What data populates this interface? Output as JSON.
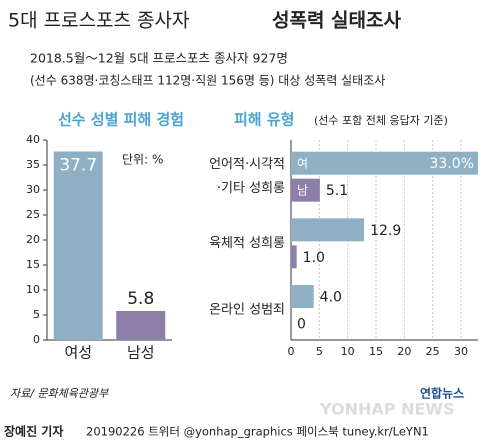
{
  "title": "5대 프로스포츠 종사자",
  "title_highlight": "성폭력 실태조사",
  "subtitle": [
    "2018.5월～12월 5대 프로스포츠 종사자 927명",
    "(선수 638명·코칭스태프 112명·직원 156명 등) 대상 성폭력 실태조사"
  ],
  "source": "자료/ 문화체육관광부",
  "credit": {
    "reporter": "장예진 기자",
    "info": "20190226 트위터 @yonhap_graphics  페이스북 tuney.kr/LeYN1"
  },
  "logo": "연합뉴스",
  "watermark": "YONHAP NEWS",
  "chart_data": [
    {
      "type": "bar",
      "title": "선수 성별 피해 경험",
      "annotation": "단위: %",
      "categories": [
        "여성",
        "남성"
      ],
      "values": [
        37.7,
        5.8
      ],
      "colors": [
        "#8fb0c4",
        "#8d7fa8"
      ],
      "value_label_colors": [
        "#ffffff",
        "#222222"
      ],
      "ylim": [
        0,
        40
      ],
      "yticks": [
        0,
        5,
        10,
        15,
        20,
        25,
        30,
        35,
        40
      ]
    },
    {
      "type": "barh",
      "title": "피해 유형",
      "subtitle": "(선수 포함 전체 응답자 기준)",
      "categories": [
        [
          "언어적·시각적",
          "·기타 성희롱"
        ],
        [
          "육체적 성희롱"
        ],
        [
          "온라인 성범죄"
        ]
      ],
      "series": [
        {
          "name": "여",
          "color": "#8fb0c4",
          "values": [
            33.0,
            12.9,
            4.0
          ],
          "value_labels": [
            "33.0%",
            "12.9",
            "4.0"
          ]
        },
        {
          "name": "남",
          "color": "#8d7fa8",
          "values": [
            5.1,
            1.0,
            0
          ],
          "value_labels": [
            "5.1",
            "1.0",
            "0"
          ]
        }
      ],
      "xlim": [
        0,
        33
      ],
      "xticks": [
        0,
        5,
        10,
        15,
        20,
        25,
        30
      ],
      "grid": true
    }
  ]
}
